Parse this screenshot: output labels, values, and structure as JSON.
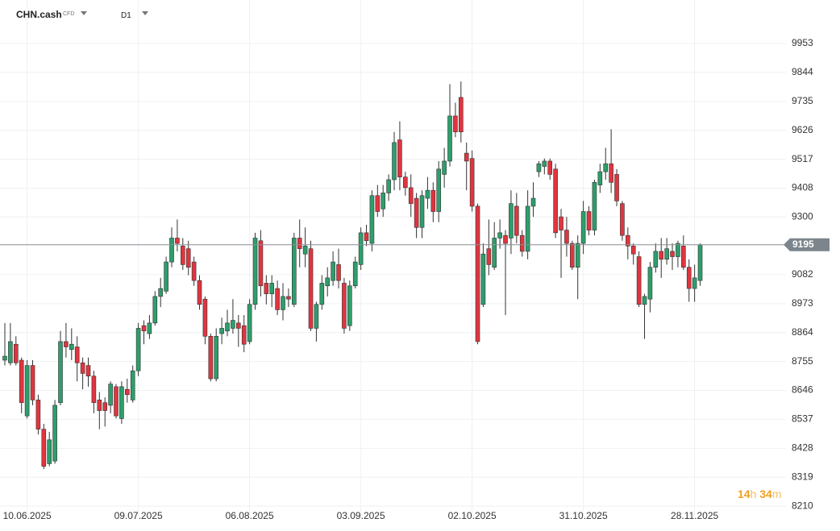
{
  "chart_data": {
    "type": "candlestick",
    "symbol": "CHN.cash",
    "instrument_type": "CFD",
    "timeframe": "D1",
    "up_color": "#2e9e6b",
    "down_color": "#e0353f",
    "grid": true,
    "ylim": [
      8174,
      10117
    ],
    "yticks": [
      8210,
      8319,
      8428,
      8537,
      8646,
      8755,
      8864,
      8973,
      9082,
      9195,
      9300,
      9408,
      9517,
      9626,
      9735,
      9844,
      9953
    ],
    "xlim": [
      -0.87,
      140.43
    ],
    "xticks": [
      {
        "value": 4,
        "label": "10.06.2025"
      },
      {
        "value": 24,
        "label": "09.07.2025"
      },
      {
        "value": 44,
        "label": "06.08.2025"
      },
      {
        "value": 64,
        "label": "03.09.2025"
      },
      {
        "value": 84,
        "label": "02.10.2025"
      },
      {
        "value": 104,
        "label": "31.10.2025"
      },
      {
        "value": 124,
        "label": "28.11.2025"
      }
    ],
    "last_price": 9195,
    "countdown": {
      "hours": "14",
      "hours_unit": "h",
      "minutes": "34",
      "minutes_unit": "m"
    },
    "open": [
      8760,
      8750,
      8820,
      8760,
      8550,
      8740,
      8610,
      8500,
      8370,
      8380,
      8600,
      8830,
      8800,
      8810,
      8750,
      8740,
      8700,
      8610,
      8600,
      8590,
      8660,
      8540,
      8650,
      8610,
      8720,
      8890,
      8860,
      8900,
      9000,
      9020,
      9130,
      9220,
      9190,
      9180,
      9130,
      9060,
      8990,
      8850,
      8690,
      8860,
      8870,
      8880,
      8900,
      8890,
      8830,
      8970,
      9210,
      9050,
      9010,
      9030,
      8950,
      9000,
      8970,
      9220,
      9160,
      9180,
      8880,
      8970,
      9040,
      9060,
      9120,
      9050,
      8890,
      9040,
      9120,
      9240,
      9200,
      9380,
      9330,
      9390,
      9440,
      9590,
      9450,
      9410,
      9370,
      9260,
      9370,
      9400,
      9320,
      9460,
      9510,
      9680,
      9750,
      9540,
      9520,
      9340,
      8970,
      9180,
      9110,
      9220,
      9230,
      9220,
      9340,
      9230,
      9170,
      9340,
      9470,
      9490,
      9510,
      9480,
      9300,
      9250,
      9200,
      9110,
      9200,
      9320,
      9250,
      9420,
      9470,
      9500,
      9460,
      9350,
      9230,
      9190,
      9150,
      8970,
      8990,
      9110,
      9170,
      9140,
      9170,
      9150,
      9190,
      9110,
      9030,
      9060
    ],
    "high": [
      8900,
      8900,
      8850,
      8770,
      8760,
      8760,
      8630,
      8520,
      8490,
      8610,
      8870,
      8900,
      8880,
      8850,
      8770,
      8770,
      8720,
      8640,
      8620,
      8680,
      8670,
      8680,
      8690,
      8740,
      8900,
      8910,
      8930,
      9020,
      9070,
      9150,
      9260,
      9290,
      9220,
      9210,
      9150,
      9080,
      9000,
      8860,
      8880,
      8920,
      8950,
      8990,
      8930,
      8930,
      8990,
      9240,
      9250,
      9080,
      9080,
      9060,
      9050,
      9030,
      9240,
      9290,
      9260,
      9210,
      8980,
      9080,
      9110,
      9170,
      9180,
      9070,
      9060,
      9150,
      9260,
      9270,
      9400,
      9420,
      9420,
      9460,
      9620,
      9660,
      9470,
      9460,
      9390,
      9400,
      9450,
      9430,
      9510,
      9560,
      9800,
      9730,
      9810,
      9580,
      9550,
      9350,
      9200,
      9290,
      9280,
      9290,
      9250,
      9400,
      9390,
      9250,
      9400,
      9430,
      9510,
      9520,
      9520,
      9500,
      9330,
      9300,
      9210,
      9230,
      9360,
      9340,
      9440,
      9500,
      9560,
      9630,
      9480,
      9360,
      9260,
      9200,
      9170,
      9010,
      9130,
      9200,
      9220,
      9220,
      9200,
      9210,
      9230,
      9140,
      9120,
      9200
    ],
    "low": [
      8740,
      8740,
      8740,
      8560,
      8540,
      8590,
      8480,
      8350,
      8360,
      8370,
      8590,
      8770,
      8760,
      8680,
      8650,
      8660,
      8560,
      8500,
      8510,
      8560,
      8540,
      8520,
      8600,
      8600,
      8700,
      8820,
      8840,
      8890,
      8960,
      9010,
      9110,
      9170,
      9100,
      9080,
      9040,
      8950,
      8820,
      8680,
      8680,
      8820,
      8850,
      8860,
      8810,
      8790,
      8820,
      8950,
      9000,
      8970,
      8960,
      8930,
      8910,
      8960,
      8960,
      9110,
      9110,
      8870,
      8830,
      8950,
      9000,
      9040,
      9030,
      8860,
      8870,
      9030,
      9100,
      9190,
      9170,
      9300,
      9300,
      9360,
      9400,
      9400,
      9380,
      9300,
      9220,
      9220,
      9330,
      9280,
      9280,
      9410,
      9490,
      9600,
      9580,
      9400,
      9320,
      8820,
      8960,
      9080,
      9100,
      9180,
      8930,
      9160,
      9200,
      9150,
      9140,
      9300,
      9450,
      9460,
      9440,
      9220,
      9070,
      9150,
      9100,
      8990,
      9160,
      9230,
      9230,
      9390,
      9440,
      9390,
      9340,
      9210,
      9140,
      9120,
      8960,
      8840,
      8940,
      9090,
      9070,
      9120,
      9100,
      9110,
      9100,
      8980,
      8980,
      9040
    ],
    "close": [
      8775,
      8830,
      8750,
      8600,
      8740,
      8610,
      8500,
      8360,
      8460,
      8590,
      8830,
      8810,
      8820,
      8750,
      8710,
      8700,
      8600,
      8570,
      8570,
      8670,
      8550,
      8660,
      8630,
      8720,
      8880,
      8870,
      8900,
      9000,
      9030,
      9130,
      9220,
      9200,
      9120,
      9110,
      9060,
      8970,
      8850,
      8690,
      8850,
      8880,
      8900,
      8910,
      8880,
      8820,
      8970,
      9220,
      9040,
      9010,
      9050,
      8950,
      9000,
      8990,
      9220,
      9180,
      9190,
      8880,
      8970,
      9050,
      9070,
      9130,
      9060,
      8880,
      9040,
      9130,
      9240,
      9210,
      9380,
      9320,
      9390,
      9440,
      9580,
      9450,
      9410,
      9350,
      9260,
      9380,
      9400,
      9320,
      9480,
      9510,
      9680,
      9620,
      9620,
      9510,
      9340,
      8830,
      9160,
      9120,
      9220,
      9240,
      9200,
      9350,
      9230,
      9170,
      9340,
      9370,
      9500,
      9510,
      9460,
      9240,
      9250,
      9200,
      9110,
      9200,
      9320,
      9250,
      9430,
      9470,
      9500,
      9430,
      9360,
      9230,
      9190,
      9160,
      8970,
      9000,
      9110,
      9170,
      9140,
      9180,
      9150,
      9200,
      9110,
      9030,
      9070,
      9195
    ]
  }
}
